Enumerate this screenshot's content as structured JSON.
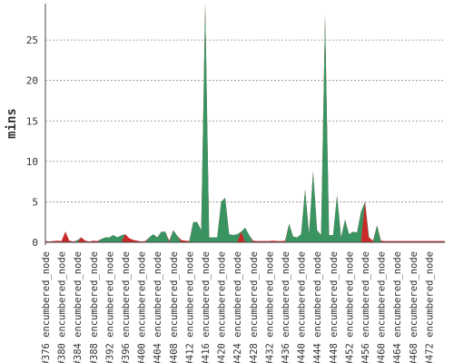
{
  "chart_data": {
    "type": "area",
    "ylabel": "mins",
    "ylim": [
      0,
      29.5
    ],
    "yticks": [
      0,
      5,
      10,
      15,
      20,
      25
    ],
    "grid": true,
    "x": [
      376,
      377,
      378,
      379,
      380,
      381,
      382,
      383,
      384,
      385,
      386,
      387,
      388,
      389,
      390,
      391,
      392,
      393,
      394,
      395,
      396,
      397,
      398,
      399,
      400,
      401,
      402,
      403,
      404,
      405,
      406,
      407,
      408,
      409,
      410,
      411,
      412,
      413,
      414,
      415,
      416,
      417,
      418,
      419,
      420,
      421,
      422,
      423,
      424,
      425,
      426,
      427,
      428,
      429,
      430,
      431,
      432,
      433,
      434,
      435,
      436,
      437,
      438,
      439,
      440,
      441,
      442,
      443,
      444,
      445,
      446,
      447,
      448,
      449,
      450,
      451,
      452,
      453,
      454,
      455,
      456,
      457,
      458,
      459,
      460,
      461,
      462,
      463,
      464,
      465,
      466,
      467,
      468,
      469,
      470,
      471,
      472,
      473,
      474,
      475,
      476
    ],
    "x_tick_labels": [
      "#376 encumbered_node",
      "#380 encumbered_node",
      "#384 encumbered_node",
      "#388 encumbered_node",
      "#392 encumbered_node",
      "#396 encumbered_node",
      "#400 encumbered_node",
      "#404 encumbered_node",
      "#408 encumbered_node",
      "#412 encumbered_node",
      "#416 encumbered_node",
      "#420 encumbered_node",
      "#424 encumbered_node",
      "#428 encumbered_node",
      "#432 encumbered_node",
      "#436 encumbered_node",
      "#440 encumbered_node",
      "#444 encumbered_node",
      "#448 encumbered_node",
      "#452 encumbered_node",
      "#456 encumbered_node",
      "#460 encumbered_node",
      "#464 encumbered_node",
      "#468 encumbered_node",
      "#472 encumbered_node"
    ],
    "x_tick_values": [
      376,
      380,
      384,
      388,
      392,
      396,
      400,
      404,
      408,
      412,
      416,
      420,
      424,
      428,
      432,
      436,
      440,
      444,
      448,
      452,
      456,
      460,
      464,
      468,
      472
    ],
    "values": [
      0.15,
      0.1,
      0.15,
      0.2,
      0.15,
      1.3,
      0.2,
      0.1,
      0.25,
      0.6,
      0.2,
      0.1,
      0.2,
      0.15,
      0.4,
      0.6,
      0.6,
      0.9,
      0.6,
      0.85,
      1.0,
      0.5,
      0.3,
      0.2,
      0.1,
      0.15,
      0.6,
      1.0,
      0.6,
      1.3,
      1.3,
      0.2,
      1.5,
      0.8,
      0.3,
      0.2,
      0.15,
      2.5,
      2.5,
      1.5,
      31,
      0.6,
      0.6,
      0.6,
      5.0,
      5.5,
      1.0,
      0.9,
      1.0,
      1.3,
      1.8,
      0.9,
      0.2,
      0.15,
      0.15,
      0.15,
      0.15,
      0.2,
      0.15,
      0.15,
      0.2,
      2.3,
      0.7,
      0.6,
      1.0,
      6.5,
      1.0,
      8.8,
      1.5,
      0.9,
      28,
      0.9,
      0.9,
      5.8,
      0.6,
      2.8,
      1.0,
      1.3,
      1.2,
      3.8,
      5.0,
      0.6,
      0.2,
      2.1,
      0.2,
      0.15,
      0.15,
      0.15,
      0.15,
      0.15,
      0.15,
      0.15,
      0.15,
      0.15,
      0.15,
      0.15,
      0.15,
      0.15,
      0.15,
      0.15,
      0.15
    ],
    "colors": {
      "above": "#3a9462",
      "below": "#cc2a2a"
    },
    "threshold_series": [
      0.2,
      0.2,
      0.2,
      0.2,
      0.2,
      0.2,
      0.2,
      0.2,
      0.2,
      0.2,
      0.2,
      0.2,
      0.2,
      0.2,
      0.2,
      0.2,
      0.2,
      0.2,
      0.2,
      0.2,
      0.5,
      0.5,
      0.5,
      0.5,
      0.5,
      0.5,
      0.5,
      0.5,
      0.5,
      0.5,
      0.5,
      0.5,
      0.5,
      0.5,
      0.5,
      0.5,
      0.5,
      0.5,
      0.5,
      0.5,
      0.5,
      0.5,
      0.5,
      0.5,
      0.5,
      0.5,
      0.5,
      0.5,
      0.5,
      0.5,
      0.5,
      0.5,
      0.5,
      0.5,
      0.5,
      0.5,
      0.5,
      0.5,
      0.5,
      0.5,
      0.5,
      0.5,
      0.5,
      0.5,
      0.5,
      0.5,
      0.5,
      0.5,
      0.5,
      0.5,
      0.5,
      0.5,
      0.5,
      0.5,
      0.5,
      0.5,
      0.5,
      0.5,
      0.5,
      0.5,
      0.5,
      0.5,
      0.5,
      0.5,
      0.5,
      0.5,
      0.5,
      0.5,
      0.5,
      0.5,
      0.5,
      0.5,
      0.5,
      0.5,
      0.5,
      0.5,
      0.5,
      0.5,
      0.5,
      0.5,
      0.5
    ]
  }
}
